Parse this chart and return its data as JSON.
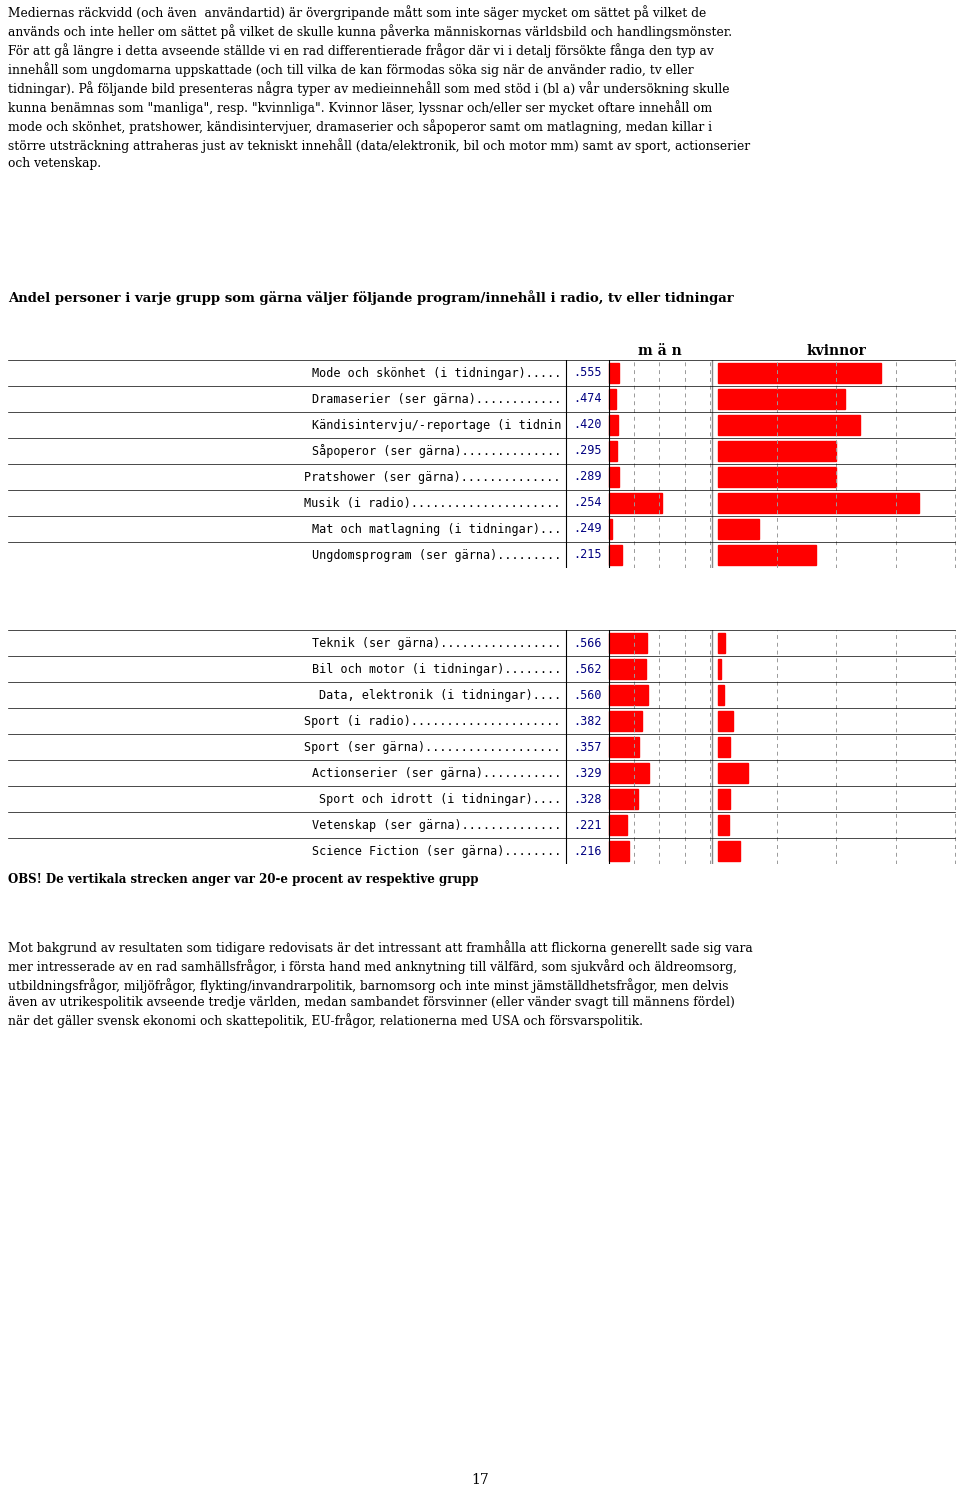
{
  "intro_text": "Mediernas räckvidd (och även  användartid) är övergripande mått som inte säger mycket om sättet på vilket de\nanvänds och inte heller om sättet på vilket de skulle kunna påverka människornas världsbild och handlingsmönster.\nFör att gå längre i detta avseende ställde vi en rad differentierade frågor där vi i detalj försökte fånga den typ av\ninnehåll som ungdomarna uppskattade (och till vilka de kan förmodas söka sig när de använder radio, tv eller\ntidningar). På följande bild presenteras några typer av medieinnehåll som med stöd i (bl a) vår undersökning skulle\nkunna benämnas som \"manliga\", resp. \"kvinnliga\". Kvinnor läser, lyssnar och/eller ser mycket oftare innehåll om\nmode och skönhet, pratshower, kändisintervjuer, dramaserier och såpoperor samt om matlagning, medan killar i\nstörre utsträckning attraheras just av tekniskt innehåll (data/elektronik, bil och motor mm) samt av sport, actionserier\noch vetenskap.",
  "chart_title": "Andel personer i varje grupp som gärna väljer följande program/innehåll i radio, tv eller tidningar",
  "men_label": "m ä n",
  "women_label": "kvinnor",
  "group1_labels": [
    "Mode och skönhet (i tidningar).....",
    "Dramaserier (ser gärna)............",
    "Kändisintervju/-reportage (i tidnin",
    "Såpoperor (ser gärna)..............",
    "Pratshower (ser gärna)..............",
    "Musik (i radio).....................",
    "Mat och matlagning (i tidningar)...",
    "Ungdomsprogram (ser gärna)........."
  ],
  "group1_values_label": [
    ".555",
    ".474",
    ".420",
    ".295",
    ".289",
    ".254",
    ".249",
    ".215"
  ],
  "group1_men": [
    0.08,
    0.055,
    0.075,
    0.065,
    0.08,
    0.42,
    0.025,
    0.1
  ],
  "group1_women": [
    0.55,
    0.43,
    0.48,
    0.4,
    0.4,
    0.68,
    0.14,
    0.33
  ],
  "group2_labels": [
    "Teknik (ser gärna).................",
    "Bil och motor (i tidningar)........",
    "Data, elektronik (i tidningar)....",
    "Sport (i radio).....................",
    "Sport (ser gärna)...................",
    "Actionserier (ser gärna)...........",
    "Sport och idrott (i tidningar)....",
    "Vetenskap (ser gärna)..............",
    "Science Fiction (ser gärna)........"
  ],
  "group2_values_label": [
    ".566",
    ".562",
    ".560",
    ".382",
    ".357",
    ".329",
    ".328",
    ".221",
    ".216"
  ],
  "group2_men": [
    0.3,
    0.29,
    0.31,
    0.26,
    0.24,
    0.32,
    0.23,
    0.14,
    0.16
  ],
  "group2_women": [
    0.025,
    0.01,
    0.02,
    0.05,
    0.04,
    0.1,
    0.04,
    0.038,
    0.075
  ],
  "obs_text": "OBS! De vertikala strecken anger var 20-e procent av respektive grupp",
  "outro_text": "Mot bakgrund av resultaten som tidigare redovisats är det intressant att framhålla att flickorna generellt sade sig vara\nmer intresserade av en rad samhällsfrågor, i första hand med anknytning till välfärd, som sjukvård och äldreomsorg,\nutbildningsfrågor, miljöfrågor, flykting/invandrarpolitik, barnomsorg och inte minst jämställdhetsfrågor, men delvis\näven av utrikespolitik avseende tredje världen, medan sambandet försvinner (eller vänder svagt till männens fördel)\nnär det gäller svensk ekonomi och skattepolitik, EU-frågor, relationerna med USA och försvarspolitik.",
  "page_number": "17",
  "bar_color": "#ff0000",
  "grid_color": "#999999",
  "label_color": "#000080",
  "text_color": "#000000",
  "background_color": "#ffffff"
}
